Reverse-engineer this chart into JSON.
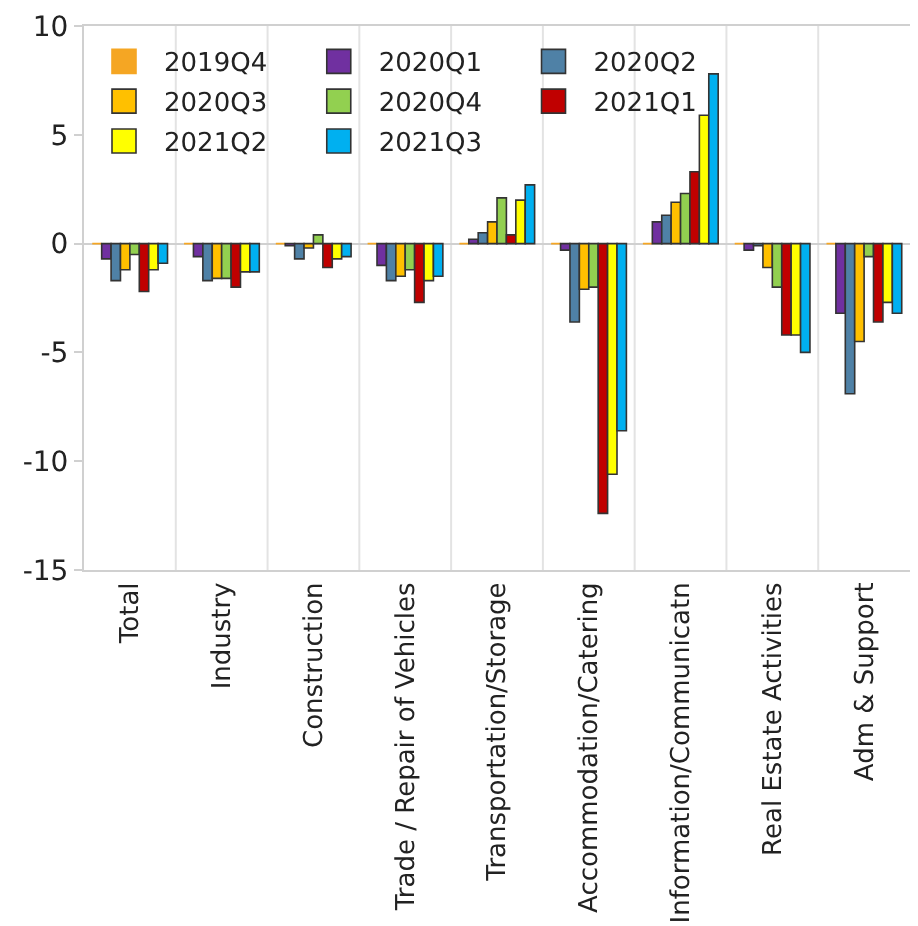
{
  "chart_data": {
    "type": "bar",
    "categories": [
      "Total",
      "Industry",
      "Construction",
      "Trade / Repair of Vehicles",
      "Transportation/Storage",
      "Accommodation/Catering",
      "Information/Communicatn",
      "Real Estate Activities",
      "Adm & Support"
    ],
    "series": [
      {
        "name": "2019Q4",
        "color": "#f5a623",
        "values": [
          0,
          0,
          0,
          0,
          0,
          0,
          0,
          0,
          0
        ]
      },
      {
        "name": "2020Q1",
        "color": "#7030a0",
        "values": [
          -0.7,
          -0.6,
          -0.1,
          -1.0,
          0.2,
          -0.3,
          1.0,
          -0.3,
          -3.2
        ]
      },
      {
        "name": "2020Q2",
        "color": "#4f81a6",
        "values": [
          -1.7,
          -1.7,
          -0.7,
          -1.7,
          0.5,
          -3.6,
          1.3,
          -0.1,
          -6.9
        ]
      },
      {
        "name": "2020Q3",
        "color": "#ffc000",
        "values": [
          -1.2,
          -1.6,
          -0.2,
          -1.5,
          1.0,
          -2.1,
          1.9,
          -1.1,
          -4.5
        ]
      },
      {
        "name": "2020Q4",
        "color": "#92d050",
        "values": [
          -0.5,
          -1.6,
          0.4,
          -1.2,
          2.1,
          -2.0,
          2.3,
          -2.0,
          -0.6
        ]
      },
      {
        "name": "2021Q1",
        "color": "#c00000",
        "values": [
          -2.2,
          -2.0,
          -1.1,
          -2.7,
          0.4,
          -12.4,
          3.3,
          -4.2,
          -3.6
        ]
      },
      {
        "name": "2021Q2",
        "color": "#ffff00",
        "values": [
          -1.2,
          -1.3,
          -0.7,
          -1.7,
          2.0,
          -10.6,
          5.9,
          -4.2,
          -2.7
        ]
      },
      {
        "name": "2021Q3",
        "color": "#00b0f0",
        "values": [
          -0.9,
          -1.3,
          -0.6,
          -1.5,
          2.7,
          -8.6,
          7.8,
          -5.0,
          -3.2
        ]
      }
    ],
    "ylim": [
      -15,
      10
    ],
    "yticks": [
      -15,
      -10,
      -5,
      0,
      5,
      10
    ],
    "grid": "x",
    "legend": "top left"
  }
}
